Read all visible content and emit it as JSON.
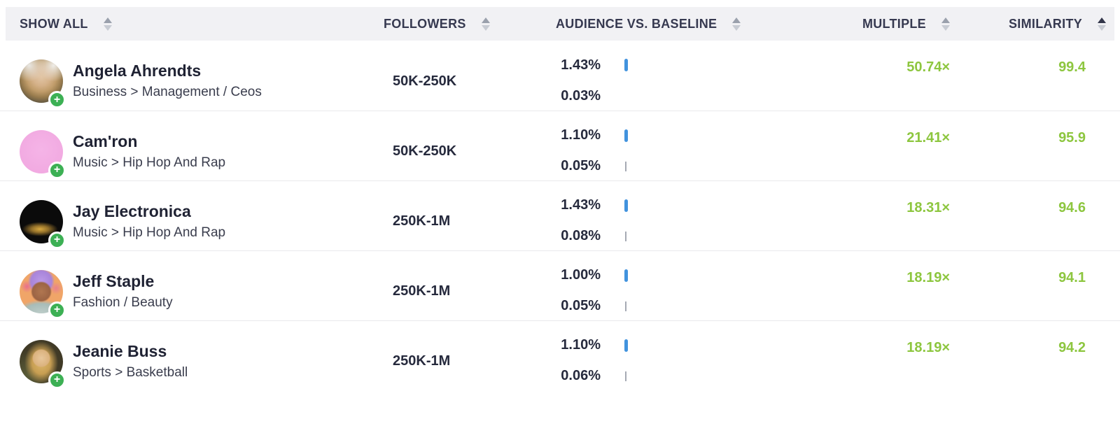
{
  "colors": {
    "accent_green": "#8dc63f",
    "badge_green": "#3cb054",
    "bar_blue": "#4293de",
    "tick_gray": "#a6aab4",
    "header_bg": "#f1f1f4",
    "header_text": "#363950",
    "text_dark": "#1f2233",
    "text_num": "#262a3d",
    "sort_active": "#33364a"
  },
  "icons": {
    "add_plus": "+"
  },
  "table": {
    "columns": [
      {
        "label": "SHOW ALL",
        "sort": "none"
      },
      {
        "label": "FOLLOWERS",
        "sort": "none"
      },
      {
        "label": "AUDIENCE VS. BASELINE",
        "sort": "none"
      },
      {
        "label": "MULTIPLE",
        "sort": "none"
      },
      {
        "label": "SIMILARITY",
        "sort": "asc"
      }
    ],
    "rows": [
      {
        "name": "Angela Ahrendts",
        "category": "Business > Management / Ceos",
        "followers": "50K-250K",
        "audience_pct": "1.43%",
        "baseline_pct": "0.03%",
        "baseline_tick": false,
        "multiple": "50.74×",
        "similarity": "99.4",
        "avatar_css": "background: radial-gradient(circle at 22% 14%, #e9e7e3 0%, rgba(233,231,227,0) 32%), radial-gradient(circle at 78% 14%, #efede9 0%, rgba(239,237,233,0) 32%), radial-gradient(circle at 50% 40%, #e2c6a6 0%, #d5b189 26%, #c09c6a 44%, #997c4e 60%, #615741 78%, #35332c 100%)"
      },
      {
        "name": "Cam'ron",
        "category": "Music > Hip Hop And Rap",
        "followers": "50K-250K",
        "audience_pct": "1.10%",
        "baseline_pct": "0.05%",
        "baseline_tick": true,
        "multiple": "21.41×",
        "similarity": "95.9",
        "avatar_css": "background: radial-gradient(circle at 50% 45%, #f5b4e7 0%, #f0a6df 100%)"
      },
      {
        "name": "Jay Electronica",
        "category": "Music > Hip Hop And Rap",
        "followers": "250K-1M",
        "audience_pct": "1.43%",
        "baseline_pct": "0.08%",
        "baseline_tick": true,
        "multiple": "18.31×",
        "similarity": "94.6",
        "avatar_css": "background: radial-gradient(ellipse 55% 22% at 47% 67%, #d9aa40 0%, #93702a 35%, rgba(18,14,6,0) 75%), #0b0b0b"
      },
      {
        "name": "Jeff Staple",
        "category": "Fashion / Beauty",
        "followers": "250K-1M",
        "audience_pct": "1.00%",
        "baseline_pct": "0.05%",
        "baseline_tick": true,
        "multiple": "18.19×",
        "similarity": "94.1",
        "avatar_css": "background: radial-gradient(circle 15px at 50% 50%, #b07650 0%, #9c6444 85%, rgba(156,100,68,0) 100%), radial-gradient(circle 19px at 50% 26%, #bb99e6 0%, #a884da 78%, rgba(168,132,218,0) 100%), radial-gradient(circle 10px at 17% 38%, #e86e8e 0%, rgba(232,110,142,0) 90%), radial-gradient(circle 10px at 84% 42%, #e8818e 0%, rgba(232,129,142,0) 90%), radial-gradient(ellipse 36px 18px at 50% 98%, #bcccc8 0%, #a8bcb8 70%, rgba(168,188,184,0) 100%), #f0a568"
      },
      {
        "name": "Jeanie Buss",
        "category": "Sports > Basketball",
        "followers": "250K-1M",
        "audience_pct": "1.10%",
        "baseline_pct": "0.06%",
        "baseline_tick": true,
        "multiple": "18.19×",
        "similarity": "94.2",
        "avatar_css": "background: radial-gradient(circle 13px at 50% 42%, #e8c79b 0%, #dbb27e 90%, rgba(219,178,126,0) 100%), radial-gradient(ellipse 24px 30px at 50% 52%, #ddb76c 0%, #c79e52 55%, rgba(199,158,82,0) 100%), radial-gradient(circle at 20% 80%, #5a5c38 0%, rgba(90,92,56,0) 50%), #403a26"
      }
    ]
  }
}
